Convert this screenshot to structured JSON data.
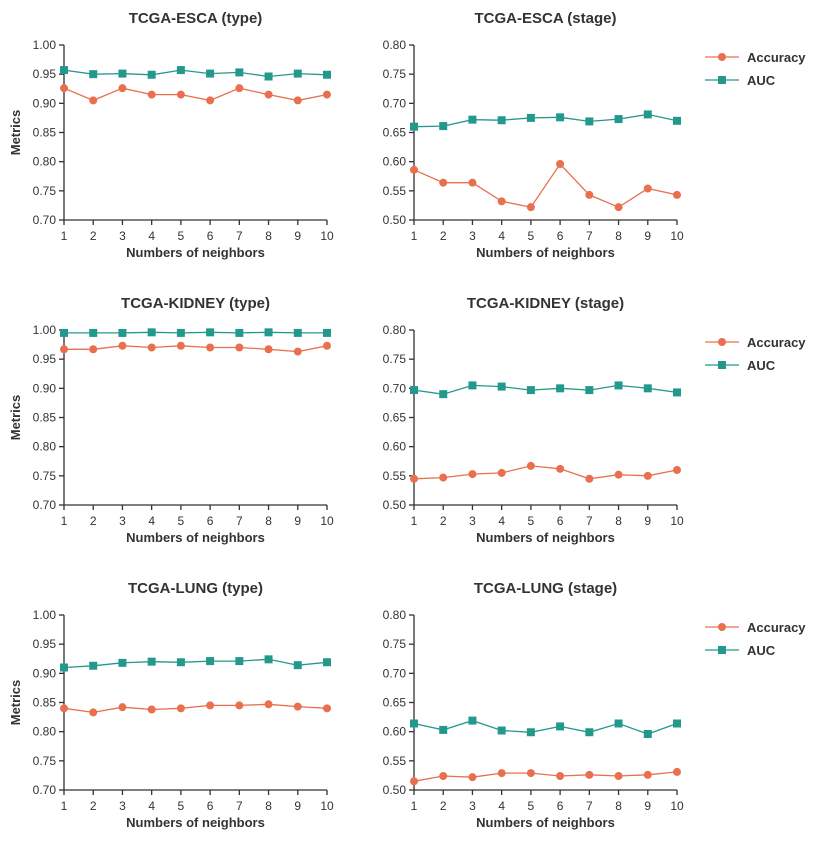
{
  "colors": {
    "accuracy": "#E8704F",
    "auc": "#23998E",
    "axis": "#333333"
  },
  "legend": [
    "Accuracy",
    "AUC"
  ],
  "chart_data": [
    {
      "type": "line",
      "title": "TCGA-ESCA (type)",
      "xlabel": "Numbers of neighbors",
      "ylabel": "Metrics",
      "x": [
        1,
        2,
        3,
        4,
        5,
        6,
        7,
        8,
        9,
        10
      ],
      "x_tick_labels": [
        "1",
        "2",
        "3",
        "4",
        "5",
        "6",
        "7",
        "8",
        "9",
        "10"
      ],
      "ylim": [
        0.7,
        1.0
      ],
      "y_tick_labels": [
        "0.70",
        "0.75",
        "0.80",
        "0.85",
        "0.90",
        "0.95",
        "1.00"
      ],
      "series": [
        {
          "name": "Accuracy",
          "values": [
            0.926,
            0.905,
            0.926,
            0.915,
            0.915,
            0.905,
            0.926,
            0.915,
            0.905,
            0.915
          ]
        },
        {
          "name": "AUC",
          "values": [
            0.957,
            0.95,
            0.951,
            0.949,
            0.957,
            0.951,
            0.953,
            0.946,
            0.951,
            0.949
          ]
        }
      ]
    },
    {
      "type": "line",
      "title": "TCGA-ESCA (stage)",
      "xlabel": "Numbers of neighbors",
      "ylabel": "",
      "x": [
        1,
        2,
        3,
        4,
        5,
        6,
        7,
        8,
        9,
        10
      ],
      "x_tick_labels": [
        "1",
        "2",
        "3",
        "4",
        "5",
        "6",
        "7",
        "8",
        "9",
        "10"
      ],
      "ylim": [
        0.5,
        0.8
      ],
      "y_tick_labels": [
        "0.50",
        "0.55",
        "0.60",
        "0.65",
        "0.70",
        "0.75",
        "0.80"
      ],
      "legend": "right",
      "series": [
        {
          "name": "Accuracy",
          "values": [
            0.586,
            0.564,
            0.564,
            0.532,
            0.522,
            0.596,
            0.543,
            0.522,
            0.554,
            0.543
          ]
        },
        {
          "name": "AUC",
          "values": [
            0.66,
            0.661,
            0.672,
            0.671,
            0.675,
            0.676,
            0.669,
            0.673,
            0.681,
            0.67
          ]
        }
      ]
    },
    {
      "type": "line",
      "title": "TCGA-KIDNEY (type)",
      "xlabel": "Numbers of neighbors",
      "ylabel": "Metrics",
      "x": [
        1,
        2,
        3,
        4,
        5,
        6,
        7,
        8,
        9,
        10
      ],
      "x_tick_labels": [
        "1",
        "2",
        "3",
        "4",
        "5",
        "6",
        "7",
        "8",
        "9",
        "10"
      ],
      "ylim": [
        0.7,
        1.0
      ],
      "y_tick_labels": [
        "0.70",
        "0.75",
        "0.80",
        "0.85",
        "0.90",
        "0.95",
        "1.00"
      ],
      "series": [
        {
          "name": "Accuracy",
          "values": [
            0.967,
            0.967,
            0.973,
            0.97,
            0.973,
            0.97,
            0.97,
            0.967,
            0.963,
            0.973
          ]
        },
        {
          "name": "AUC",
          "values": [
            0.995,
            0.995,
            0.995,
            0.996,
            0.995,
            0.996,
            0.995,
            0.996,
            0.995,
            0.995
          ]
        }
      ]
    },
    {
      "type": "line",
      "title": "TCGA-KIDNEY (stage)",
      "xlabel": "Numbers of neighbors",
      "ylabel": "",
      "x": [
        1,
        2,
        3,
        4,
        5,
        6,
        7,
        8,
        9,
        10
      ],
      "x_tick_labels": [
        "1",
        "2",
        "3",
        "4",
        "5",
        "6",
        "7",
        "8",
        "9",
        "10"
      ],
      "ylim": [
        0.5,
        0.8
      ],
      "y_tick_labels": [
        "0.50",
        "0.55",
        "0.60",
        "0.65",
        "0.70",
        "0.75",
        "0.80"
      ],
      "legend": "right",
      "series": [
        {
          "name": "Accuracy",
          "values": [
            0.545,
            0.547,
            0.553,
            0.555,
            0.567,
            0.562,
            0.545,
            0.552,
            0.55,
            0.56
          ]
        },
        {
          "name": "AUC",
          "values": [
            0.697,
            0.69,
            0.705,
            0.703,
            0.697,
            0.7,
            0.697,
            0.705,
            0.7,
            0.693
          ]
        }
      ]
    },
    {
      "type": "line",
      "title": "TCGA-LUNG (type)",
      "xlabel": "Numbers of neighbors",
      "ylabel": "Metrics",
      "x": [
        1,
        2,
        3,
        4,
        5,
        6,
        7,
        8,
        9,
        10
      ],
      "x_tick_labels": [
        "1",
        "2",
        "3",
        "4",
        "5",
        "6",
        "7",
        "8",
        "9",
        "10"
      ],
      "ylim": [
        0.7,
        1.0
      ],
      "y_tick_labels": [
        "0.70",
        "0.75",
        "0.80",
        "0.85",
        "0.90",
        "0.95",
        "1.00"
      ],
      "series": [
        {
          "name": "Accuracy",
          "values": [
            0.84,
            0.833,
            0.842,
            0.838,
            0.84,
            0.845,
            0.845,
            0.847,
            0.843,
            0.84
          ]
        },
        {
          "name": "AUC",
          "values": [
            0.91,
            0.913,
            0.918,
            0.92,
            0.919,
            0.921,
            0.921,
            0.924,
            0.914,
            0.919
          ]
        }
      ]
    },
    {
      "type": "line",
      "title": "TCGA-LUNG (stage)",
      "xlabel": "Numbers of neighbors",
      "ylabel": "",
      "x": [
        1,
        2,
        3,
        4,
        5,
        6,
        7,
        8,
        9,
        10
      ],
      "x_tick_labels": [
        "1",
        "2",
        "3",
        "4",
        "5",
        "6",
        "7",
        "8",
        "9",
        "10"
      ],
      "ylim": [
        0.5,
        0.8
      ],
      "y_tick_labels": [
        "0.50",
        "0.55",
        "0.60",
        "0.65",
        "0.70",
        "0.75",
        "0.80"
      ],
      "legend": "right",
      "series": [
        {
          "name": "Accuracy",
          "values": [
            0.515,
            0.524,
            0.522,
            0.529,
            0.529,
            0.524,
            0.526,
            0.524,
            0.526,
            0.531
          ]
        },
        {
          "name": "AUC",
          "values": [
            0.614,
            0.603,
            0.619,
            0.602,
            0.599,
            0.609,
            0.599,
            0.614,
            0.596,
            0.614
          ]
        }
      ]
    }
  ]
}
